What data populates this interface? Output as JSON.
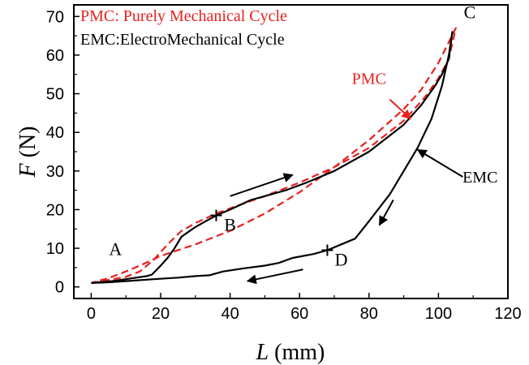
{
  "chart_data": {
    "type": "line",
    "xlabel": {
      "var": "L",
      "unit": " (mm)"
    },
    "ylabel": {
      "var": "F",
      "unit": " (N)"
    },
    "xlim": [
      -5,
      120
    ],
    "ylim": [
      -3,
      73
    ],
    "x_ticks": [
      0,
      20,
      40,
      60,
      80,
      100,
      120
    ],
    "y_ticks": [
      0,
      10,
      20,
      30,
      40,
      50,
      60,
      70
    ],
    "legend": [
      {
        "text": "PMC: Purely Mechanical Cycle",
        "color": "#e8201e"
      },
      {
        "text": "EMC:ElectroMechanical  Cycle",
        "color": "#000000"
      }
    ],
    "series": [
      {
        "name": "PMC",
        "color": "#e8201e",
        "style": "dashed",
        "x": [
          0,
          5,
          10,
          14,
          18,
          22,
          26,
          30,
          36,
          42,
          50,
          60,
          70,
          80,
          90,
          96,
          100,
          103,
          105,
          100,
          95,
          90,
          80,
          70,
          60,
          50,
          40,
          30,
          20,
          14,
          10,
          5,
          0
        ],
        "y": [
          1,
          1.8,
          2.6,
          4,
          7,
          11,
          14.5,
          16.5,
          19,
          21,
          23.5,
          27,
          31,
          36,
          43,
          49,
          54,
          59,
          67,
          58,
          51,
          46,
          38,
          31,
          24.5,
          19,
          14.5,
          11,
          8,
          5.5,
          4,
          2.3,
          1
        ]
      },
      {
        "name": "EMC",
        "color": "#000000",
        "style": "solid",
        "x": [
          0,
          6,
          10,
          16,
          17.5,
          20,
          22,
          24,
          26,
          30,
          33,
          36,
          40,
          46,
          50,
          56,
          62,
          70,
          80,
          90,
          95,
          99,
          101,
          103,
          104,
          103,
          101,
          98,
          94,
          90,
          86,
          80,
          76,
          72,
          68,
          64,
          58,
          54,
          50,
          44,
          38,
          34,
          30,
          25,
          18,
          10,
          5,
          0
        ],
        "y": [
          1,
          1.5,
          2,
          2.8,
          3.2,
          5.5,
          7.5,
          10,
          13,
          15.5,
          17,
          18.5,
          20,
          22.5,
          23.5,
          25,
          27,
          30,
          35,
          42,
          47,
          52,
          55,
          59,
          66,
          60,
          52,
          43.5,
          36,
          30,
          24,
          17,
          12.5,
          11,
          9.5,
          8.5,
          7.5,
          6.2,
          5.5,
          4.8,
          4,
          3,
          2.8,
          2.4,
          2,
          1.5,
          1.2,
          1
        ]
      }
    ],
    "markers": [
      {
        "x": 36,
        "y": 18.5
      },
      {
        "x": 68,
        "y": 9.5
      }
    ],
    "point_labels": [
      {
        "text": "A",
        "x": 7,
        "y": 8.2
      },
      {
        "text": "B",
        "x": 40,
        "y": 14.5
      },
      {
        "text": "C",
        "x": 109,
        "y": 69.5
      },
      {
        "text": "D",
        "x": 72,
        "y": 5.5
      }
    ],
    "annotations": [
      {
        "text": "PMC",
        "color": "#e8201e",
        "tx": 80,
        "ty": 52.5,
        "ax1": 86,
        "ay1": 48.5,
        "ax2": 92,
        "ay2": 43.5
      },
      {
        "text": "EMC",
        "color": "#000000",
        "tx": 112,
        "ty": 27,
        "ax1": 107,
        "ay1": 28.5,
        "ax2": 94,
        "ay2": 35.5
      }
    ],
    "direction_arrows": [
      {
        "x1": 40,
        "y1": 23.5,
        "x2": 58,
        "y2": 29
      },
      {
        "x1": 87,
        "y1": 22.5,
        "x2": 83,
        "y2": 16
      },
      {
        "x1": 61,
        "y1": 4.5,
        "x2": 45,
        "y2": 1.5
      }
    ]
  }
}
